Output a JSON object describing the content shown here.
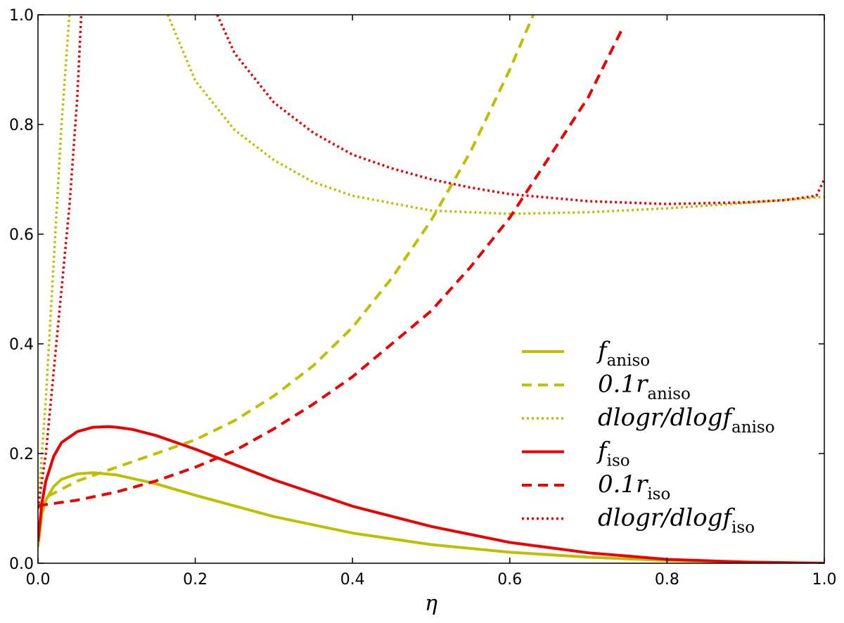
{
  "chart_data": {
    "type": "line",
    "title": "",
    "xlabel": "η",
    "ylabel": "",
    "xlim": [
      0.0,
      1.0
    ],
    "ylim": [
      0.0,
      1.0
    ],
    "x_ticks": [
      "0.0",
      "0.2",
      "0.4",
      "0.6",
      "0.8",
      "1.0"
    ],
    "y_ticks": [
      "0.0",
      "0.2",
      "0.4",
      "0.6",
      "0.8",
      "1.0"
    ],
    "grid": false,
    "legend_position": "lower-right",
    "series": [
      {
        "name": "f_aniso",
        "legend": {
          "main": "f",
          "sub": "aniso"
        },
        "color": "#bfbf00",
        "style": "solid",
        "x": [
          0.0,
          0.005,
          0.01,
          0.02,
          0.03,
          0.05,
          0.07,
          0.1,
          0.15,
          0.2,
          0.3,
          0.4,
          0.5,
          0.6,
          0.7,
          0.8,
          0.9,
          1.0
        ],
        "y": [
          0.03,
          0.09,
          0.115,
          0.14,
          0.153,
          0.163,
          0.165,
          0.161,
          0.145,
          0.124,
          0.085,
          0.055,
          0.034,
          0.02,
          0.011,
          0.005,
          0.002,
          0.0
        ]
      },
      {
        "name": "0.1r_aniso",
        "legend": {
          "main": "0.1r",
          "sub": "aniso"
        },
        "color": "#bfbf00",
        "style": "dashed",
        "x": [
          0.0,
          0.01,
          0.05,
          0.1,
          0.15,
          0.2,
          0.25,
          0.3,
          0.35,
          0.4,
          0.45,
          0.5,
          0.55,
          0.6,
          0.63
        ],
        "y": [
          0.1,
          0.12,
          0.15,
          0.175,
          0.2,
          0.225,
          0.26,
          0.305,
          0.36,
          0.43,
          0.52,
          0.625,
          0.75,
          0.9,
          1.0
        ]
      },
      {
        "name": "dlogr/dlogf_aniso (low-η branch)",
        "legend": {
          "main": "dlogr/dlogf",
          "sub": "aniso"
        },
        "color": "#bfbf00",
        "style": "dotted",
        "x": [
          0.0,
          0.01,
          0.02,
          0.03,
          0.04
        ],
        "y": [
          0.1,
          0.3,
          0.55,
          0.8,
          1.0
        ]
      },
      {
        "name": "dlogr/dlogf_aniso (high-η branch)",
        "color": "#bfbf00",
        "style": "dotted",
        "x": [
          0.165,
          0.2,
          0.25,
          0.3,
          0.35,
          0.4,
          0.5,
          0.6,
          0.7,
          0.8,
          0.9,
          1.0
        ],
        "y": [
          1.0,
          0.88,
          0.79,
          0.735,
          0.695,
          0.67,
          0.643,
          0.637,
          0.64,
          0.647,
          0.657,
          0.668
        ]
      },
      {
        "name": "f_iso",
        "legend": {
          "main": "f",
          "sub": "iso"
        },
        "color": "#ee0000",
        "style": "solid",
        "x": [
          0.0,
          0.005,
          0.01,
          0.02,
          0.03,
          0.05,
          0.07,
          0.09,
          0.1,
          0.12,
          0.15,
          0.2,
          0.25,
          0.3,
          0.4,
          0.5,
          0.6,
          0.7,
          0.8,
          0.9,
          1.0
        ],
        "y": [
          0.04,
          0.11,
          0.15,
          0.195,
          0.22,
          0.24,
          0.248,
          0.249,
          0.248,
          0.244,
          0.233,
          0.208,
          0.18,
          0.152,
          0.104,
          0.067,
          0.038,
          0.019,
          0.007,
          0.002,
          0.0
        ]
      },
      {
        "name": "0.1r_iso",
        "legend": {
          "main": "0.1r",
          "sub": "iso"
        },
        "color": "#ee0000",
        "style": "dashed",
        "x": [
          0.0,
          0.05,
          0.1,
          0.15,
          0.2,
          0.25,
          0.3,
          0.35,
          0.4,
          0.45,
          0.5,
          0.55,
          0.6,
          0.65,
          0.7,
          0.745
        ],
        "y": [
          0.105,
          0.115,
          0.13,
          0.15,
          0.175,
          0.205,
          0.245,
          0.29,
          0.34,
          0.4,
          0.46,
          0.54,
          0.63,
          0.74,
          0.85,
          0.98
        ]
      },
      {
        "name": "dlogr/dlogf_iso (low-η branch)",
        "legend": {
          "main": "dlogr/dlogf",
          "sub": "iso"
        },
        "color": "#ee0000",
        "style": "dotted",
        "x": [
          0.0,
          0.01,
          0.02,
          0.03,
          0.04,
          0.05,
          0.055
        ],
        "y": [
          0.1,
          0.2,
          0.35,
          0.5,
          0.65,
          0.85,
          1.0
        ]
      },
      {
        "name": "dlogr/dlogf_iso (high-η branch)",
        "color": "#ee0000",
        "style": "dotted",
        "x": [
          0.228,
          0.25,
          0.3,
          0.35,
          0.4,
          0.45,
          0.5,
          0.55,
          0.6,
          0.7,
          0.8,
          0.9,
          0.95,
          0.99,
          1.0
        ],
        "y": [
          1.0,
          0.93,
          0.84,
          0.785,
          0.745,
          0.72,
          0.7,
          0.685,
          0.673,
          0.66,
          0.655,
          0.658,
          0.662,
          0.67,
          0.7
        ]
      }
    ]
  }
}
